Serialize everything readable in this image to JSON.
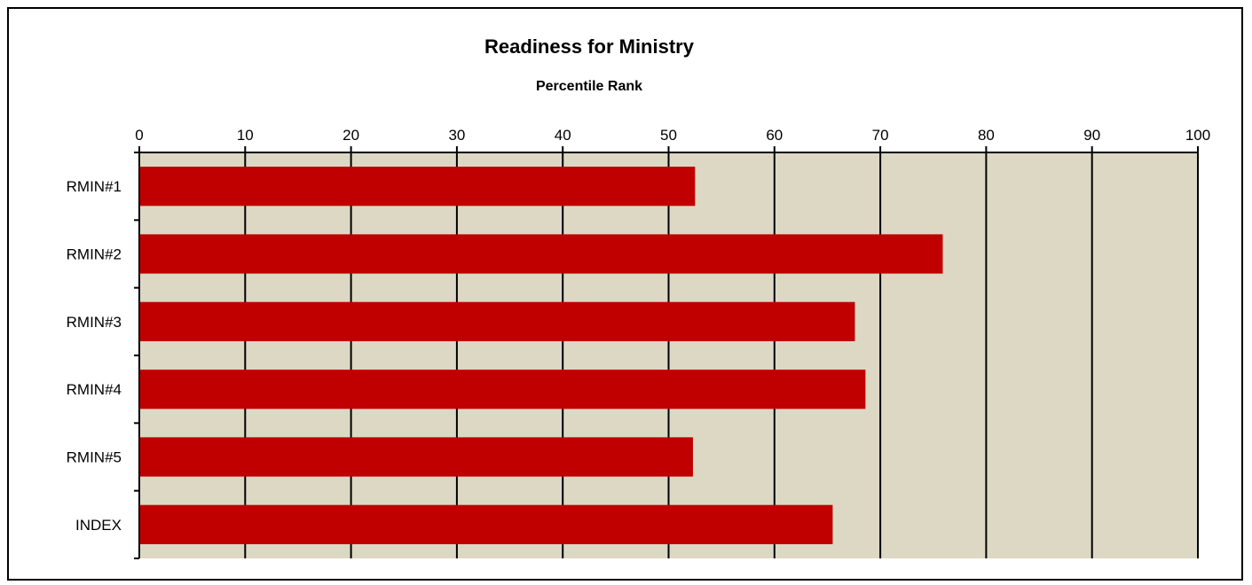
{
  "chart_data": {
    "type": "bar",
    "orientation": "horizontal",
    "title": "Readiness for Ministry",
    "xlabel": "Percentile Rank",
    "ylabel": "",
    "xlim": [
      0,
      100
    ],
    "x_ticks": [
      0,
      10,
      20,
      30,
      40,
      50,
      60,
      70,
      80,
      90,
      100
    ],
    "categories": [
      "RMIN#1",
      "RMIN#2",
      "RMIN#3",
      "RMIN#4",
      "RMIN#5",
      "INDEX"
    ],
    "values": [
      52.5,
      75.9,
      67.6,
      68.6,
      52.3,
      65.5
    ],
    "grid": true,
    "legend": "none",
    "colors": {
      "bar": "#c00000",
      "plot_background": "#ddd8c4",
      "gridline": "#000000"
    }
  }
}
